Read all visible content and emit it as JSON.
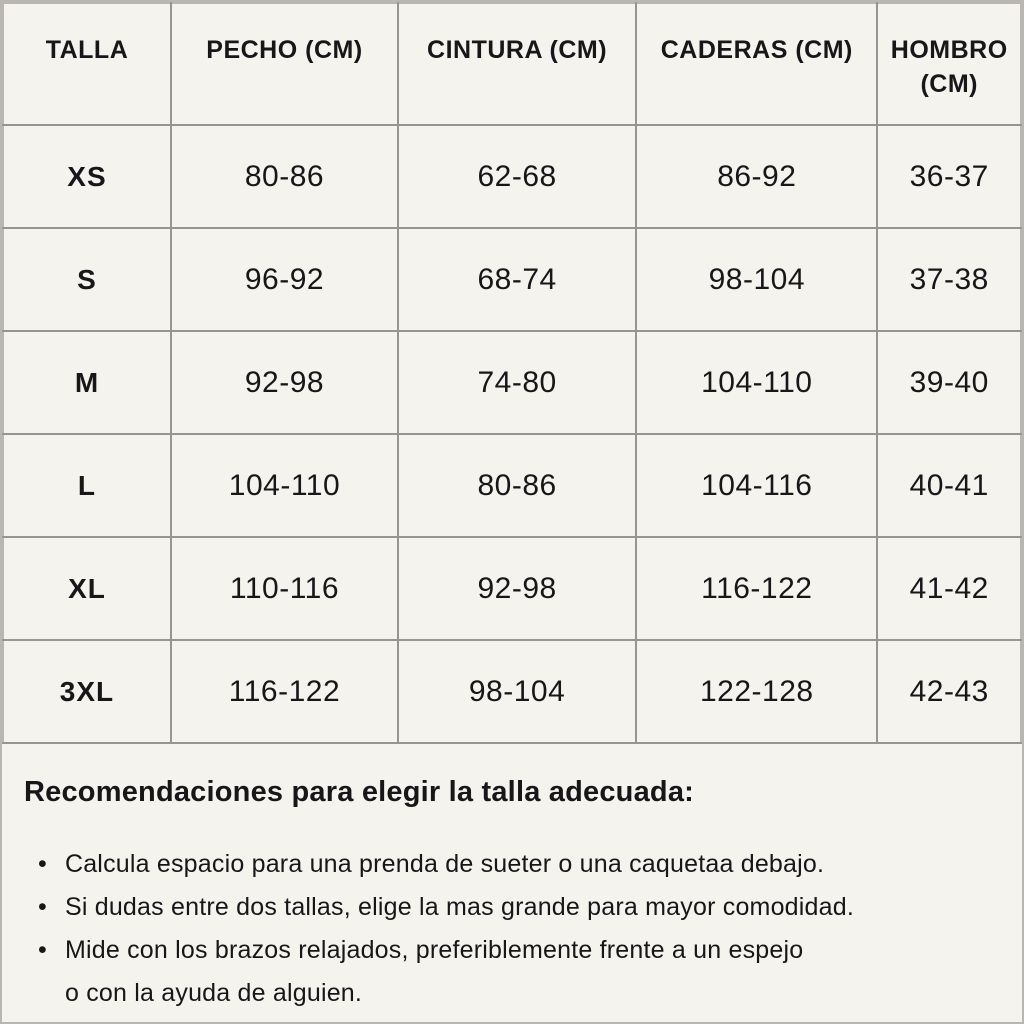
{
  "colors": {
    "background": "#f5f3ee",
    "text": "#17171a",
    "grid_border": "#96958f",
    "frame_border": "#b9b7b0"
  },
  "table": {
    "headers": [
      "TALLA",
      "PECHO (CM)",
      "CINTURA (CM)",
      "CADERAS (CM)",
      "HOMBRO (CM)"
    ],
    "rows": [
      {
        "size": "XS",
        "pecho": "80-86",
        "cintura": "62-68",
        "caderas": "86-92",
        "hombro": "36-37"
      },
      {
        "size": "S",
        "pecho": "96-92",
        "cintura": "68-74",
        "caderas": "98-104",
        "hombro": "37-38"
      },
      {
        "size": "M",
        "pecho": "92-98",
        "cintura": "74-80",
        "caderas": "104-110",
        "hombro": "39-40"
      },
      {
        "size": "L",
        "pecho": "104-110",
        "cintura": "80-86",
        "caderas": "104-116",
        "hombro": "40-41"
      },
      {
        "size": "XL",
        "pecho": "110-116",
        "cintura": "92-98",
        "caderas": "116-122",
        "hombro": "41-42"
      },
      {
        "size": "3XL",
        "pecho": "116-122",
        "cintura": "98-104",
        "caderas": "122-128",
        "hombro": "42-43"
      }
    ]
  },
  "recommendations": {
    "title": "Recomendaciones para elegir la talla adecuada:",
    "bullet_glyph": "•",
    "items": [
      "Calcula espacio para una prenda de sueter o una caquetaa debajo.",
      "Si dudas entre dos tallas, elige la mas grande para mayor comodidad.",
      "Mide con los brazos relajados, preferiblemente frente a un espejo\no con la ayuda de alguien."
    ]
  }
}
